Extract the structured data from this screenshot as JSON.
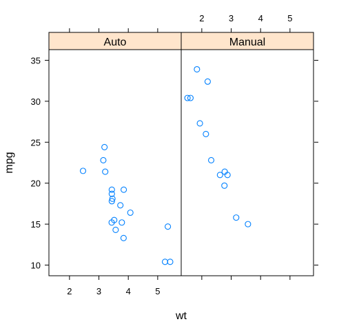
{
  "chart_data": {
    "type": "scatter",
    "xlabel": "wt",
    "ylabel": "mpg",
    "xlim": [
      1.3,
      5.8
    ],
    "ylim": [
      8.7,
      36.3
    ],
    "x_ticks": [
      "2",
      "3",
      "4",
      "5"
    ],
    "y_ticks": [
      "10",
      "15",
      "20",
      "25",
      "30",
      "35"
    ],
    "strip_color": "#ffe5cc",
    "point_color": "#0080ff",
    "panels": [
      {
        "name": "Auto",
        "points": [
          {
            "x": 2.46,
            "y": 21.5
          },
          {
            "x": 3.15,
            "y": 22.8
          },
          {
            "x": 3.19,
            "y": 24.4
          },
          {
            "x": 3.215,
            "y": 21.4
          },
          {
            "x": 3.44,
            "y": 18.7
          },
          {
            "x": 3.44,
            "y": 19.2
          },
          {
            "x": 3.44,
            "y": 17.8
          },
          {
            "x": 3.46,
            "y": 18.1
          },
          {
            "x": 3.435,
            "y": 15.2
          },
          {
            "x": 3.52,
            "y": 15.5
          },
          {
            "x": 3.57,
            "y": 14.3
          },
          {
            "x": 3.73,
            "y": 17.3
          },
          {
            "x": 3.78,
            "y": 15.2
          },
          {
            "x": 3.84,
            "y": 13.3
          },
          {
            "x": 3.845,
            "y": 19.2
          },
          {
            "x": 4.07,
            "y": 16.4
          },
          {
            "x": 5.25,
            "y": 10.4
          },
          {
            "x": 5.345,
            "y": 14.7
          },
          {
            "x": 5.424,
            "y": 10.4
          }
        ]
      },
      {
        "name": "Manual",
        "points": [
          {
            "x": 1.513,
            "y": 30.4
          },
          {
            "x": 1.615,
            "y": 30.4
          },
          {
            "x": 1.835,
            "y": 33.9
          },
          {
            "x": 1.935,
            "y": 27.3
          },
          {
            "x": 2.14,
            "y": 26.0
          },
          {
            "x": 2.2,
            "y": 32.4
          },
          {
            "x": 2.32,
            "y": 22.8
          },
          {
            "x": 2.62,
            "y": 21.0
          },
          {
            "x": 2.77,
            "y": 19.7
          },
          {
            "x": 2.78,
            "y": 21.4
          },
          {
            "x": 2.875,
            "y": 21.0
          },
          {
            "x": 3.17,
            "y": 15.8
          },
          {
            "x": 3.57,
            "y": 15.0
          }
        ]
      }
    ]
  }
}
